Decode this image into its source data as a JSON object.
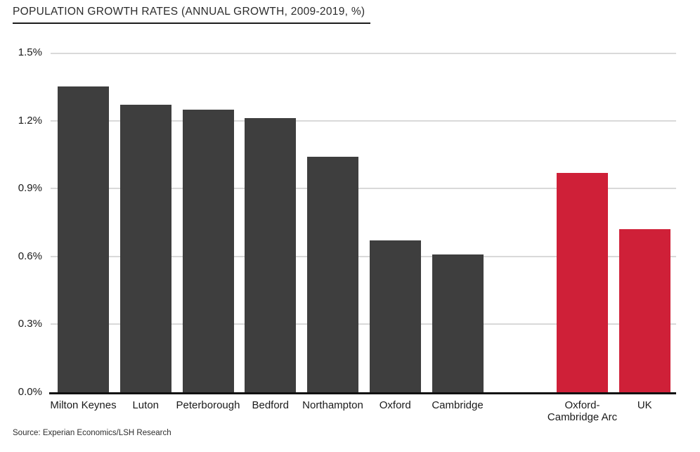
{
  "page": {
    "title": "POPULATION GROWTH RATES (ANNUAL GROWTH, 2009-2019, %)",
    "source": "Source: Experian Economics/LSH Research"
  },
  "colors": {
    "bar_default": "#3e3e3e",
    "bar_highlight": "#cf2038",
    "gridline": "#d9d9d9",
    "axis": "#111111"
  },
  "chart_data": {
    "type": "bar",
    "title": "POPULATION GROWTH RATES (ANNUAL GROWTH, 2009-2019, %)",
    "categories": [
      "Milton Keynes",
      "Luton",
      "Peterborough",
      "Bedford",
      "Northampton",
      "Oxford",
      "Cambridge",
      "Oxford-\nCambridge Arc",
      "UK"
    ],
    "values": [
      1.35,
      1.27,
      1.25,
      1.21,
      1.04,
      0.67,
      0.61,
      0.97,
      0.72
    ],
    "series_groups": [
      "default",
      "default",
      "default",
      "default",
      "default",
      "default",
      "default",
      "highlight",
      "highlight"
    ],
    "xlabel": "",
    "ylabel": "",
    "ylim": [
      0,
      1.5
    ],
    "yticks": [
      "0.0%",
      "0.3%",
      "0.6%",
      "0.9%",
      "1.2%",
      "1.5%"
    ],
    "grid": true,
    "legend": false,
    "gap_after_index": 6
  }
}
